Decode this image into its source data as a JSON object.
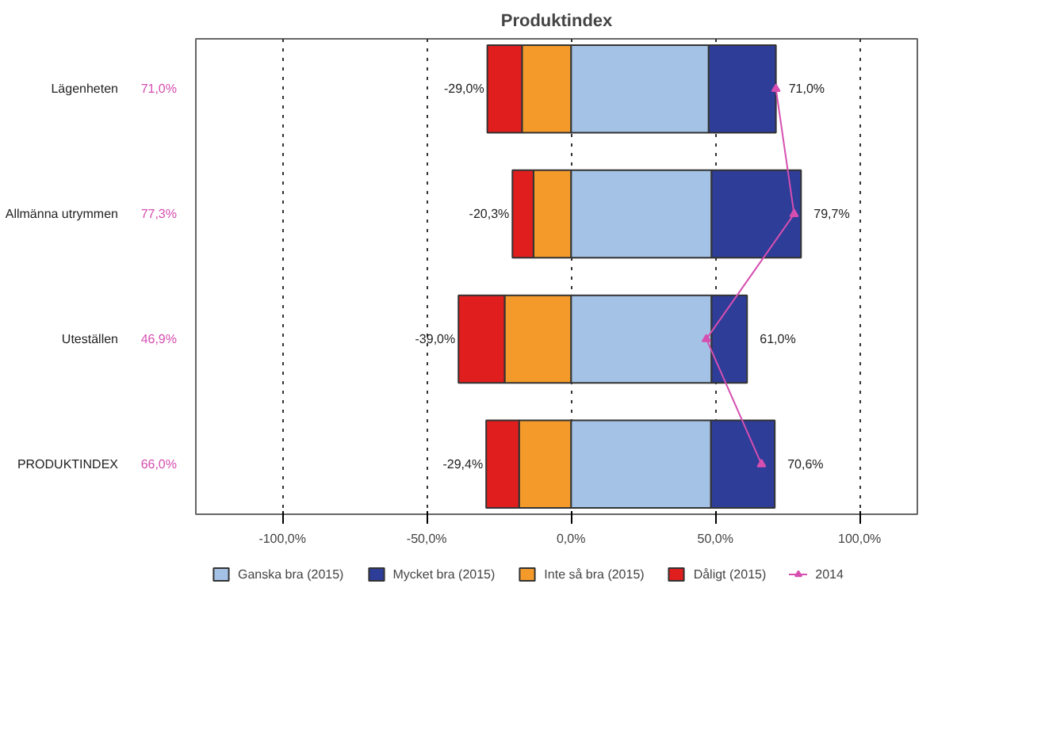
{
  "chart_data": {
    "type": "bar",
    "orientation": "horizontal",
    "stacked": true,
    "title": "Produktindex",
    "categories": [
      "Lägenheten",
      "Allmänna utrymmen",
      "Uteställen",
      "PRODUKTINDEX"
    ],
    "series": [
      {
        "name": "Ganska bra (2015)",
        "color": "#a4c2e6",
        "values": [
          47.7,
          48.7,
          48.7,
          48.5
        ]
      },
      {
        "name": "Mycket bra (2015)",
        "color": "#2e3d98",
        "values": [
          23.3,
          31.0,
          12.3,
          22.1
        ]
      },
      {
        "name": "Inte så bra (2015)",
        "color": "#f39a2a",
        "values": [
          -17.0,
          -13.0,
          -23.0,
          -18.0
        ]
      },
      {
        "name": "Dåligt (2015)",
        "color": "#e01e1e",
        "values": [
          -12.0,
          -7.3,
          -16.0,
          -11.4
        ]
      },
      {
        "name": "2014",
        "type": "line",
        "color": "#d64fb0",
        "values": [
          71.0,
          77.3,
          46.9,
          66.0
        ],
        "value_labels": [
          "71,0%",
          "77,3%",
          "46,9%",
          "66,0%"
        ]
      }
    ],
    "annotations": [
      {
        "text": "-29,0%",
        "x": -29.0,
        "y": "Lägenheten"
      },
      {
        "text": "71,0%",
        "x": 71.0,
        "y": "Lägenheten"
      },
      {
        "text": "-20,3%",
        "x": -20.3,
        "y": "Allmänna utrymmen"
      },
      {
        "text": "79,7%",
        "x": 79.7,
        "y": "Allmänna utrymmen"
      },
      {
        "text": "-39,0%",
        "x": -39.0,
        "y": "Uteställen"
      },
      {
        "text": "61,0%",
        "x": 61.0,
        "y": "Uteställen"
      },
      {
        "text": "-29,4%",
        "x": -29.4,
        "y": "PRODUKTINDEX"
      },
      {
        "text": "70,6%",
        "x": 70.6,
        "y": "PRODUKTINDEX"
      }
    ],
    "xlim": [
      -130,
      120
    ],
    "xticks": [
      {
        "value": -100,
        "label": "-100,0%"
      },
      {
        "value": -50,
        "label": "-50,0%"
      },
      {
        "value": 0,
        "label": "0,0%"
      },
      {
        "value": 50,
        "label": "50,0%"
      },
      {
        "value": 100,
        "label": "100,0%"
      }
    ],
    "grid": "x",
    "legend": "bottom",
    "marker": "triangle",
    "line_style": "solid"
  }
}
